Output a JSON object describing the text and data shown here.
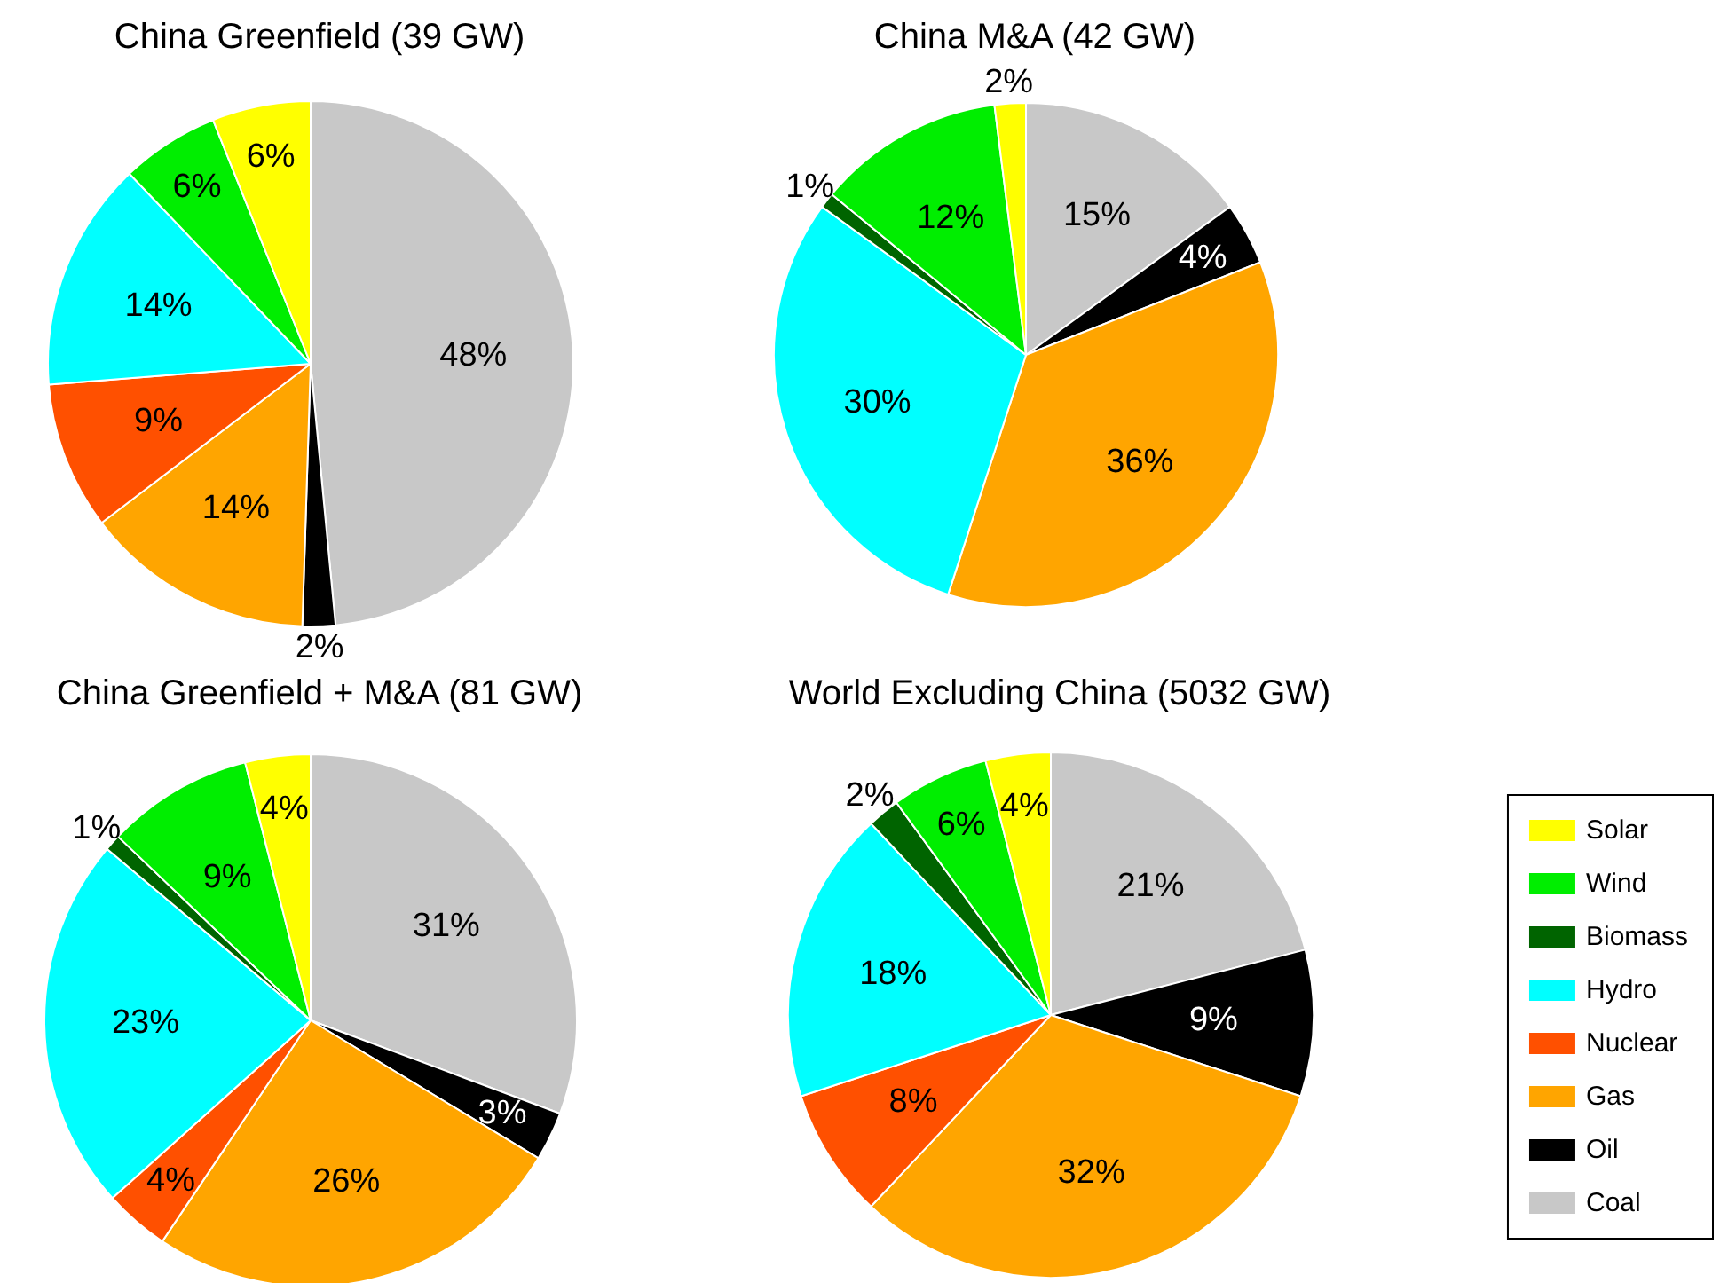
{
  "chart_data": {
    "type": "pie",
    "categories": [
      "Coal",
      "Oil",
      "Gas",
      "Nuclear",
      "Hydro",
      "Biomass",
      "Wind",
      "Solar"
    ],
    "colors": [
      "#c8c8c8",
      "#000000",
      "#ffa500",
      "#ff5000",
      "#00ffff",
      "#006400",
      "#00ee00",
      "#ffff00"
    ],
    "legend": "right",
    "series": [
      {
        "name": "China Greenfield (39 GW)",
        "values": [
          48,
          2,
          14,
          9,
          14,
          null,
          6,
          6
        ],
        "value_labels": [
          "48%",
          "2%",
          "14%",
          "9%",
          "14%",
          null,
          "6%",
          "6%"
        ]
      },
      {
        "name": "China M&A (42 GW)",
        "values": [
          15,
          4,
          36,
          null,
          30,
          1,
          12,
          2
        ],
        "value_labels": [
          "15%",
          "4%",
          "36%",
          null,
          "30%",
          "1%",
          "12%",
          "2%"
        ]
      },
      {
        "name": "China Greenfield + M&A (81 GW)",
        "values": [
          31,
          3,
          26,
          4,
          23,
          1,
          9,
          4
        ],
        "value_labels": [
          "31%",
          "3%",
          "26%",
          "4%",
          "23%",
          "1%",
          "9%",
          "4%"
        ]
      },
      {
        "name": "World Excluding China (5032 GW)",
        "values": [
          21,
          9,
          32,
          8,
          18,
          2,
          6,
          4
        ],
        "value_labels": [
          "21%",
          "9%",
          "32%",
          "8%",
          "18%",
          "2%",
          "6%",
          "4%"
        ]
      }
    ]
  }
}
